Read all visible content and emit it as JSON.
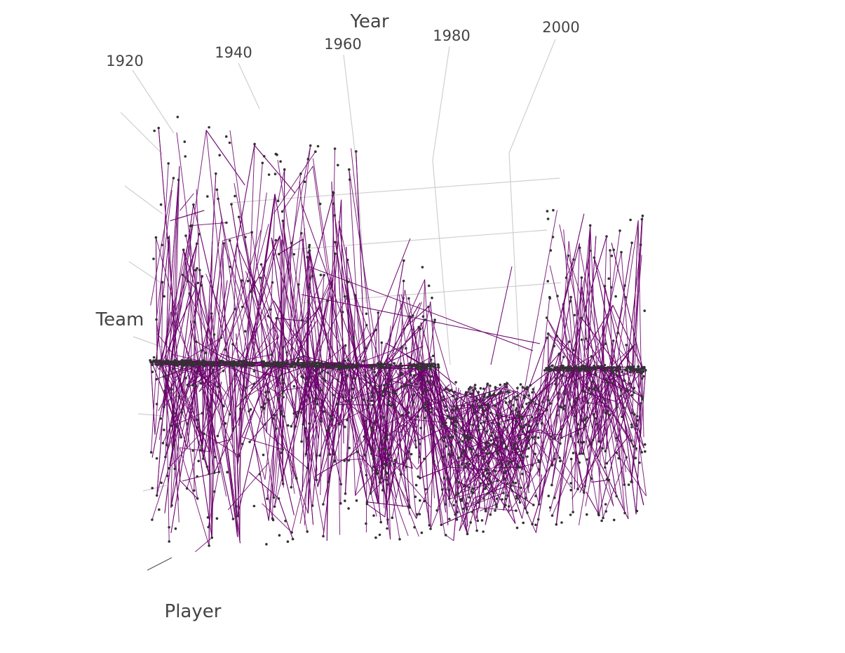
{
  "chart_data": {
    "type": "scatter3d",
    "mode": "lines+markers",
    "axes": {
      "x": {
        "title": "Year",
        "ticks": [
          "1920",
          "1940",
          "1960",
          "1980",
          "2000"
        ],
        "tick_values": [
          1920,
          1940,
          1960,
          1980,
          2000
        ]
      },
      "y": {
        "title": "Team",
        "ticks": []
      },
      "z": {
        "title": "Player",
        "ticks": []
      }
    },
    "grid": true,
    "legend": "none",
    "colors": {
      "line": "#6b006b",
      "marker": "#333333",
      "grid": "#cfcfcf",
      "text": "#444444"
    },
    "series": [
      {
        "segments": [
          {
            "year_range": [
              1915,
              1935
            ],
            "team_range": [
              0.0,
              1.0
            ],
            "peak": 0.97
          },
          {
            "year_range": [
              1936,
              1955
            ],
            "team_range": [
              0.0,
              1.0
            ],
            "peak": 0.93
          },
          {
            "year_range": [
              1956,
              1962
            ],
            "team_range": [
              0.0,
              0.5
            ],
            "peak": 0.55
          },
          {
            "year_range": [
              1963,
              1970
            ],
            "team_range": [
              0.0,
              0.65
            ],
            "peak": 0.68
          },
          {
            "year_range": [
              1971,
              1990
            ],
            "team_range": [
              0.0,
              0.35
            ],
            "peak": 0.38
          },
          {
            "year_range": [
              1991,
              2010
            ],
            "team_range": [
              0.0,
              0.75
            ],
            "peak": 0.82
          }
        ]
      }
    ]
  }
}
